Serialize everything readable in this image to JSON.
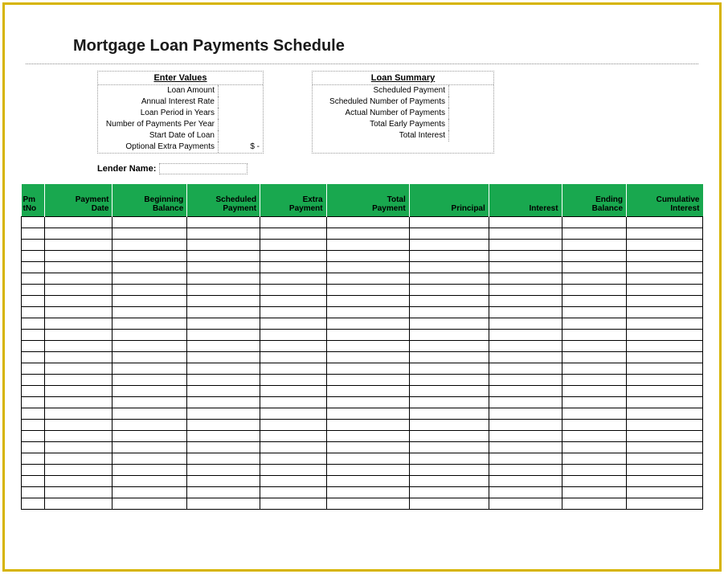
{
  "title": "Mortgage Loan Payments Schedule",
  "enterValues": {
    "header": "Enter Values",
    "rows": [
      {
        "label": "Loan Amount",
        "value": ""
      },
      {
        "label": "Annual Interest Rate",
        "value": ""
      },
      {
        "label": "Loan Period in Years",
        "value": ""
      },
      {
        "label": "Number of Payments Per Year",
        "value": ""
      },
      {
        "label": "Start Date of Loan",
        "value": ""
      },
      {
        "label": "Optional Extra Payments",
        "value": "$        -"
      }
    ]
  },
  "loanSummary": {
    "header": "Loan Summary",
    "rows": [
      {
        "label": "Scheduled Payment",
        "value": ""
      },
      {
        "label": "Scheduled Number of Payments",
        "value": ""
      },
      {
        "label": "Actual Number of Payments",
        "value": ""
      },
      {
        "label": "Total Early Payments",
        "value": ""
      },
      {
        "label": "Total Interest",
        "value": ""
      }
    ]
  },
  "lender": {
    "label": "Lender Name:",
    "value": ""
  },
  "schedule": {
    "columns": [
      {
        "key": "no",
        "label": "PmtNo",
        "class": "col-no"
      },
      {
        "key": "date",
        "label": "Payment Date",
        "class": "col-date"
      },
      {
        "key": "bb",
        "label": "Beginning Balance",
        "class": "col-bb"
      },
      {
        "key": "sp",
        "label": "Scheduled Payment",
        "class": "col-sp"
      },
      {
        "key": "ep",
        "label": "Extra Payment",
        "class": "col-ep"
      },
      {
        "key": "tp",
        "label": "Total Payment",
        "class": "col-tp"
      },
      {
        "key": "pr",
        "label": "Principal",
        "class": "col-pr"
      },
      {
        "key": "int",
        "label": "Interest",
        "class": "col-int"
      },
      {
        "key": "eb",
        "label": "Ending Balance",
        "class": "col-eb"
      },
      {
        "key": "ci",
        "label": "Cumulative Interest",
        "class": "col-ci"
      }
    ],
    "row_count": 26,
    "header_bg": "#19a84f",
    "border_color": "#000000"
  },
  "colors": {
    "frame_border": "#d6b400",
    "hr_dotted": "#888888",
    "box_dotted": "#999999",
    "background": "#ffffff"
  }
}
